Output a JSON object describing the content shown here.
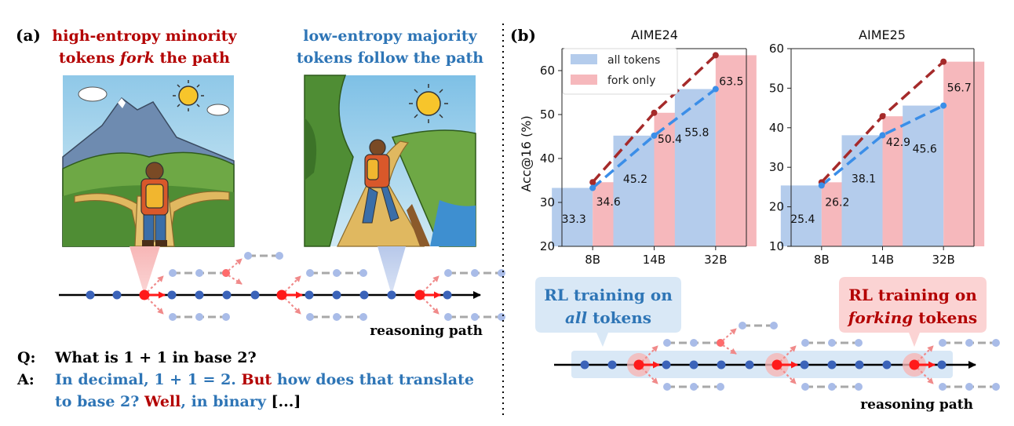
{
  "panel_a": {
    "label": "(a)",
    "fork_caption": {
      "line1": "high-entropy minority",
      "line2_prefix": "tokens ",
      "line2_emph": "fork",
      "line2_suffix": " the path"
    },
    "follow_caption": {
      "line1": "low-entropy majority",
      "line2": "tokens follow the path"
    },
    "axis_label": "reasoning path",
    "qa": {
      "q_label": "Q:",
      "question": "What is 1 + 1 in base 2?",
      "a_label": "A:",
      "answer_part1": "In decimal, 1 + 1 = 2.",
      "answer_fork1": "But",
      "answer_part2": "how does that translate",
      "answer_line2": "to base 2?",
      "answer_fork2": "Well",
      "answer_part3": ", in binary",
      "answer_ellipsis": "[...]"
    }
  },
  "panel_b": {
    "label": "(b)",
    "legend": [
      "all tokens",
      "fork only"
    ],
    "callout_all": {
      "line1": "RL training on",
      "line2": "all",
      "line2_suffix": " tokens"
    },
    "callout_fork": {
      "line1": "RL training on",
      "line2": "forking",
      "line2_suffix": " tokens"
    },
    "axis_label": "reasoning path"
  },
  "colors": {
    "red": "#b30000",
    "blue": "#2e75b6",
    "bar_blue": "#b4ccec",
    "bar_red": "#f6b8bc",
    "line_red": "#a52a2a",
    "line_blue": "#3b8ee8",
    "dot_blue": "#3b63b9",
    "dot_red": "#ff1a1a",
    "branch_gray": "#a8a8a8",
    "branch_dot": "#a9bce8"
  },
  "chart_data": [
    {
      "type": "bar",
      "title": "AIME24",
      "ylabel": "Acc@16 (%)",
      "categories": [
        "8B",
        "14B",
        "32B"
      ],
      "ylim": [
        20,
        65
      ],
      "yticks": [
        20,
        30,
        40,
        50,
        60
      ],
      "legend_position": "top-left",
      "series": [
        {
          "name": "all tokens",
          "values": [
            33.3,
            45.2,
            55.8
          ]
        },
        {
          "name": "fork only",
          "values": [
            34.6,
            50.4,
            63.5
          ]
        }
      ]
    },
    {
      "type": "bar",
      "title": "AIME25",
      "ylabel": "",
      "categories": [
        "8B",
        "14B",
        "32B"
      ],
      "ylim": [
        10,
        60
      ],
      "yticks": [
        10,
        20,
        30,
        40,
        50,
        60
      ],
      "series": [
        {
          "name": "all tokens",
          "values": [
            25.4,
            38.1,
            45.6
          ]
        },
        {
          "name": "fork only",
          "values": [
            26.2,
            42.9,
            56.7
          ]
        }
      ]
    }
  ]
}
